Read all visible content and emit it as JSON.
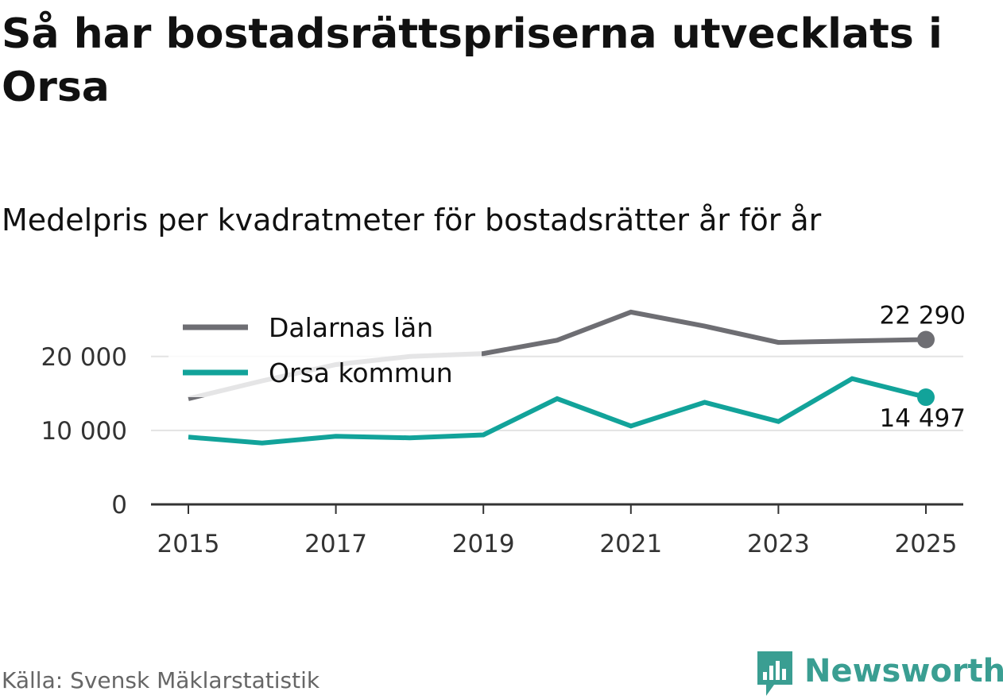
{
  "title": "Så har bostadsrättspriserna utvecklats i Orsa",
  "subtitle": "Medelpris per kvadratmeter för bostadsrätter år för år",
  "source": "Källa: Svensk Mäklarstatistik",
  "brand": {
    "name": "Newsworthy",
    "icon": "newsworthy-logo-icon",
    "color": "#3a9e92"
  },
  "colors": {
    "dalarna": "#6e6e73",
    "orsa": "#12a39a",
    "grid": "#e3e3e3",
    "axis": "#333333"
  },
  "chart_data": {
    "type": "line",
    "title": "Så har bostadsrättspriserna utvecklats i Orsa",
    "subtitle": "Medelpris per kvadratmeter för bostadsrätter år för år",
    "xlabel": "",
    "ylabel": "",
    "x": [
      2015,
      2016,
      2017,
      2018,
      2019,
      2020,
      2021,
      2022,
      2023,
      2024,
      2025
    ],
    "xticks": [
      2015,
      2017,
      2019,
      2021,
      2023,
      2025
    ],
    "xtick_labels": [
      "2015",
      "2017",
      "2019",
      "2021",
      "2023",
      "2025"
    ],
    "xlim": [
      2014.7,
      2025.5
    ],
    "ylim": [
      0,
      28000
    ],
    "yticks": [
      0,
      10000,
      20000
    ],
    "ytick_labels": [
      "0",
      "10 000",
      "20 000"
    ],
    "grid": true,
    "legend_position": "top-left",
    "series": [
      {
        "name": "Dalarnas län",
        "color": "#6e6e73",
        "values": [
          14300,
          16700,
          18900,
          20000,
          20400,
          22200,
          26000,
          24100,
          21900,
          22100,
          22290
        ],
        "end_label": "22 290"
      },
      {
        "name": "Orsa kommun",
        "color": "#12a39a",
        "values": [
          9100,
          8300,
          9200,
          9000,
          9400,
          14300,
          10600,
          13800,
          11200,
          17000,
          14497
        ],
        "end_label": "14 497"
      }
    ]
  }
}
